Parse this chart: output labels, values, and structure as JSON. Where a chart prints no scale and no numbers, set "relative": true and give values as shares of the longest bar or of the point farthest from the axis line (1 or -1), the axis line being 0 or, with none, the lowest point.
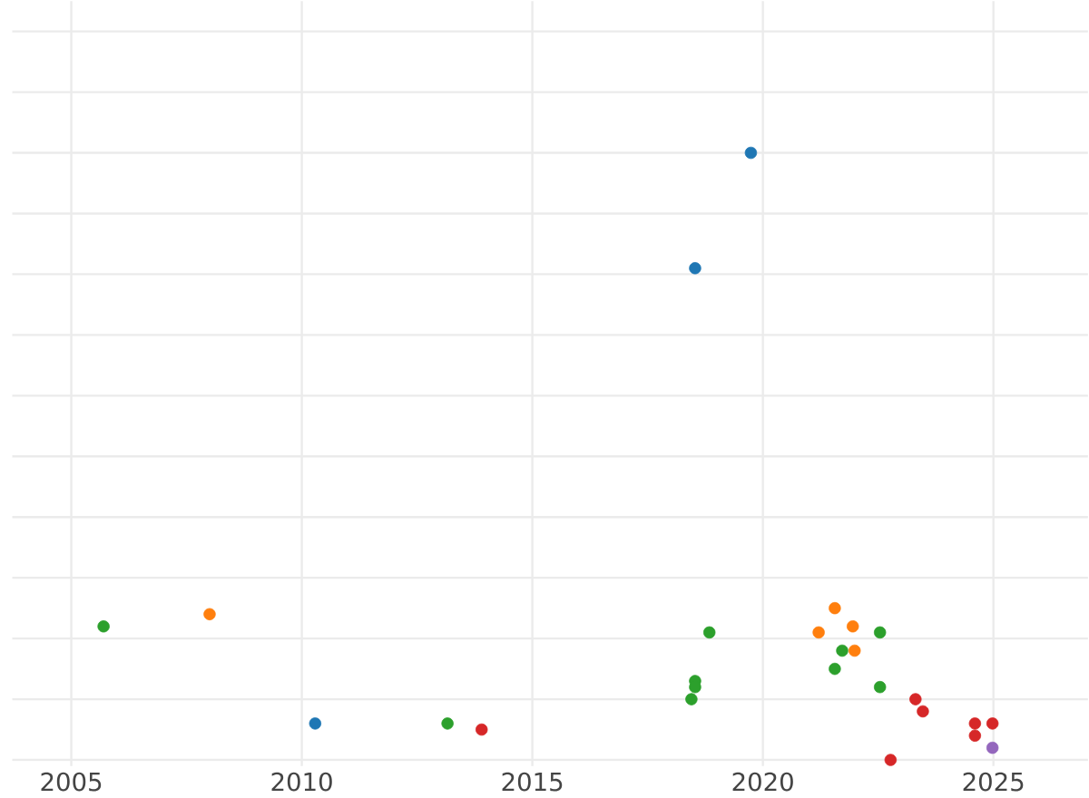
{
  "chart_data": {
    "type": "scatter",
    "relative": true,
    "grid": true,
    "marker": "circle",
    "xlim": [
      2003.72,
      2027.05
    ],
    "xticks": [
      2005,
      2010,
      2015,
      2020,
      2025
    ],
    "series": [
      {
        "color": "#1f77b4",
        "x": [
          2019.74,
          2018.53,
          2010.29
        ],
        "values": [
          1.0,
          0.81,
          0.06
        ]
      },
      {
        "color": "#ff7f0e",
        "x": [
          2008.0,
          2021.56,
          2021.21,
          2021.95,
          2021.99
        ],
        "values": [
          0.24,
          0.25,
          0.21,
          0.22,
          0.18
        ]
      },
      {
        "color": "#2ca02c",
        "x": [
          2005.7,
          2018.84,
          2018.53,
          2018.53,
          2018.45,
          2013.16,
          2021.72,
          2021.56,
          2022.54,
          2022.54
        ],
        "values": [
          0.22,
          0.21,
          0.13,
          0.12,
          0.1,
          0.06,
          0.18,
          0.15,
          0.21,
          0.12
        ]
      },
      {
        "color": "#d62728",
        "x": [
          2013.9,
          2022.77,
          2023.31,
          2023.47,
          2024.6,
          2024.98,
          2024.6
        ],
        "values": [
          0.05,
          0.0,
          0.1,
          0.08,
          0.06,
          0.06,
          0.04
        ]
      },
      {
        "color": "#9467bd",
        "x": [
          2024.98
        ],
        "values": [
          0.02
        ]
      }
    ]
  }
}
